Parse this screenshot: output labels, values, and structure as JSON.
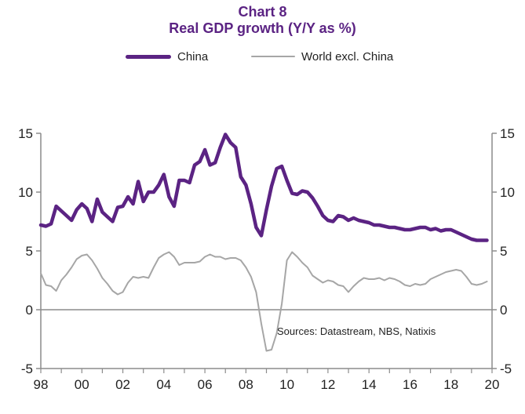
{
  "header": {
    "title": "Chart 8",
    "subtitle": "Real GDP  growth (Y/Y as %)"
  },
  "legend": {
    "china_label": "China",
    "world_label": "World excl. China"
  },
  "source": "Sources:  Datastream,  NBS, Natixis",
  "colors": {
    "china": "#5b2383",
    "world": "#a6a6a6",
    "axis": "#8c8c8c",
    "title": "#5b2383"
  },
  "chart_data": {
    "type": "line",
    "xlim": [
      1998,
      2020
    ],
    "ylim": [
      -5,
      15
    ],
    "x_ticks": [
      "98",
      "00",
      "02",
      "04",
      "06",
      "08",
      "10",
      "12",
      "14",
      "16",
      "18",
      "20"
    ],
    "y_ticks": [
      "15",
      "10",
      "5",
      "0",
      "-5"
    ],
    "grid": false,
    "zero_line": true,
    "legend_position": "top",
    "series": [
      {
        "name": "China",
        "x": [
          1998.0,
          1998.25,
          1998.5,
          1998.75,
          1999.0,
          1999.25,
          1999.5,
          1999.75,
          2000.0,
          2000.25,
          2000.5,
          2000.75,
          2001.0,
          2001.25,
          2001.5,
          2001.75,
          2002.0,
          2002.25,
          2002.5,
          2002.75,
          2003.0,
          2003.25,
          2003.5,
          2003.75,
          2004.0,
          2004.25,
          2004.5,
          2004.75,
          2005.0,
          2005.25,
          2005.5,
          2005.75,
          2006.0,
          2006.25,
          2006.5,
          2006.75,
          2007.0,
          2007.25,
          2007.5,
          2007.75,
          2008.0,
          2008.25,
          2008.5,
          2008.75,
          2009.0,
          2009.25,
          2009.5,
          2009.75,
          2010.0,
          2010.25,
          2010.5,
          2010.75,
          2011.0,
          2011.25,
          2011.5,
          2011.75,
          2012.0,
          2012.25,
          2012.5,
          2012.75,
          2013.0,
          2013.25,
          2013.5,
          2013.75,
          2014.0,
          2014.25,
          2014.5,
          2014.75,
          2015.0,
          2015.25,
          2015.5,
          2015.75,
          2016.0,
          2016.25,
          2016.5,
          2016.75,
          2017.0,
          2017.25,
          2017.5,
          2017.75,
          2018.0,
          2018.25,
          2018.5,
          2018.75,
          2019.0,
          2019.25,
          2019.5,
          2019.75
        ],
        "values": [
          7.2,
          7.1,
          7.3,
          8.8,
          8.4,
          8.0,
          7.6,
          8.5,
          9.0,
          8.6,
          7.5,
          9.4,
          8.3,
          7.9,
          7.5,
          8.7,
          8.8,
          9.6,
          9.0,
          10.9,
          9.2,
          10.0,
          10.0,
          10.6,
          11.5,
          9.6,
          8.8,
          11.0,
          11.0,
          10.8,
          12.3,
          12.6,
          13.6,
          12.3,
          12.5,
          13.8,
          14.9,
          14.2,
          13.8,
          11.3,
          10.6,
          9.0,
          7.0,
          6.3,
          8.5,
          10.5,
          12.0,
          12.2,
          11.0,
          9.9,
          9.8,
          10.1,
          10.0,
          9.5,
          8.8,
          8.0,
          7.6,
          7.5,
          8.0,
          7.9,
          7.6,
          7.8,
          7.6,
          7.5,
          7.4,
          7.2,
          7.2,
          7.1,
          7.0,
          7.0,
          6.9,
          6.8,
          6.8,
          6.9,
          7.0,
          7.0,
          6.8,
          6.9,
          6.7,
          6.8,
          6.8,
          6.6,
          6.4,
          6.2,
          6.0,
          5.9,
          5.9,
          5.9
        ],
        "color": "#5b2383"
      },
      {
        "name": "World excl. China",
        "x": [
          1998.0,
          1998.25,
          1998.5,
          1998.75,
          1999.0,
          1999.25,
          1999.5,
          1999.75,
          2000.0,
          2000.25,
          2000.5,
          2000.75,
          2001.0,
          2001.25,
          2001.5,
          2001.75,
          2002.0,
          2002.25,
          2002.5,
          2002.75,
          2003.0,
          2003.25,
          2003.5,
          2003.75,
          2004.0,
          2004.25,
          2004.5,
          2004.75,
          2005.0,
          2005.25,
          2005.5,
          2005.75,
          2006.0,
          2006.25,
          2006.5,
          2006.75,
          2007.0,
          2007.25,
          2007.5,
          2007.75,
          2008.0,
          2008.25,
          2008.5,
          2008.75,
          2009.0,
          2009.25,
          2009.5,
          2009.75,
          2010.0,
          2010.25,
          2010.5,
          2010.75,
          2011.0,
          2011.25,
          2011.5,
          2011.75,
          2012.0,
          2012.25,
          2012.5,
          2012.75,
          2013.0,
          2013.25,
          2013.5,
          2013.75,
          2014.0,
          2014.25,
          2014.5,
          2014.75,
          2015.0,
          2015.25,
          2015.5,
          2015.75,
          2016.0,
          2016.25,
          2016.5,
          2016.75,
          2017.0,
          2017.25,
          2017.5,
          2017.75,
          2018.0,
          2018.25,
          2018.5,
          2018.75,
          2019.0,
          2019.25,
          2019.5,
          2019.75
        ],
        "values": [
          3.1,
          2.1,
          2.0,
          1.6,
          2.5,
          3.0,
          3.6,
          4.3,
          4.6,
          4.7,
          4.2,
          3.5,
          2.7,
          2.2,
          1.6,
          1.3,
          1.5,
          2.3,
          2.8,
          2.7,
          2.8,
          2.7,
          3.6,
          4.4,
          4.7,
          4.9,
          4.5,
          3.8,
          4.0,
          4.0,
          4.0,
          4.1,
          4.5,
          4.7,
          4.5,
          4.5,
          4.3,
          4.4,
          4.4,
          4.2,
          3.6,
          2.8,
          1.5,
          -1.2,
          -3.5,
          -3.4,
          -2.0,
          0.5,
          4.2,
          4.9,
          4.5,
          4.0,
          3.6,
          2.9,
          2.6,
          2.3,
          2.5,
          2.4,
          2.1,
          2.0,
          1.5,
          2.0,
          2.4,
          2.7,
          2.6,
          2.6,
          2.7,
          2.5,
          2.7,
          2.6,
          2.4,
          2.1,
          2.0,
          2.2,
          2.1,
          2.2,
          2.6,
          2.8,
          3.0,
          3.2,
          3.3,
          3.4,
          3.3,
          2.8,
          2.2,
          2.1,
          2.2,
          2.4
        ],
        "color": "#a6a6a6"
      }
    ]
  }
}
